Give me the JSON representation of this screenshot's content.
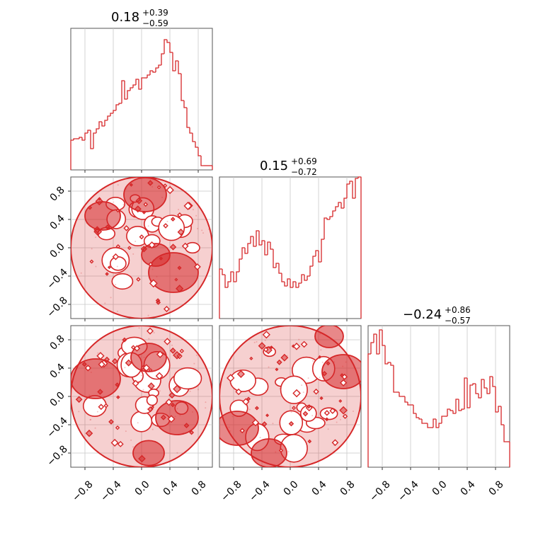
{
  "figure": {
    "panels": [
      {
        "title": {
          "value": "0.18",
          "upper": "+0.39",
          "lower": "−0.59"
        }
      },
      {
        "title": {
          "value": "0.15",
          "upper": "+0.69",
          "lower": "−0.72"
        }
      },
      {
        "title": {
          "value": "−0.24",
          "upper": "+0.86",
          "lower": "−0.57"
        }
      }
    ],
    "tick_labels": [
      "−0.8",
      "−0.4",
      "0.0",
      "0.4",
      "0.8"
    ]
  },
  "chart_data": [
    {
      "type": "histogram",
      "panel": "diag-0",
      "title": "0.18 +0.39 −0.59",
      "xlim": [
        -1,
        1
      ],
      "ylim": [
        0,
        1
      ],
      "color": "#d62728",
      "bin_edges": [
        -1.0,
        -0.96,
        -0.92,
        -0.88,
        -0.84,
        -0.8,
        -0.76,
        -0.72,
        -0.68,
        -0.64,
        -0.6,
        -0.56,
        -0.52,
        -0.48,
        -0.44,
        -0.4,
        -0.36,
        -0.32,
        -0.28,
        -0.24,
        -0.2,
        -0.16,
        -0.12,
        -0.08,
        -0.04,
        0.0,
        0.04,
        0.08,
        0.12,
        0.16,
        0.2,
        0.24,
        0.28,
        0.32,
        0.36,
        0.4,
        0.44,
        0.48,
        0.52,
        0.56,
        0.6,
        0.64,
        0.68,
        0.72,
        0.76,
        0.8,
        0.84,
        0.88,
        0.92,
        0.96,
        1.0
      ],
      "counts": [
        0.21,
        0.22,
        0.22,
        0.23,
        0.21,
        0.26,
        0.28,
        0.15,
        0.26,
        0.29,
        0.34,
        0.31,
        0.35,
        0.38,
        0.4,
        0.42,
        0.46,
        0.47,
        0.63,
        0.5,
        0.56,
        0.58,
        0.6,
        0.64,
        0.57,
        0.65,
        0.65,
        0.67,
        0.7,
        0.69,
        0.72,
        0.74,
        0.82,
        0.92,
        0.9,
        0.83,
        0.7,
        0.77,
        0.68,
        0.49,
        0.44,
        0.3,
        0.26,
        0.2,
        0.16,
        0.1,
        0.03,
        0.03,
        0.03,
        0.03
      ]
    },
    {
      "type": "histogram",
      "panel": "diag-1",
      "title": "0.15 +0.69 −0.72",
      "xlim": [
        -1,
        1
      ],
      "ylim": [
        0,
        1
      ],
      "color": "#d62728",
      "bin_edges": [
        -1.0,
        -0.96,
        -0.92,
        -0.88,
        -0.84,
        -0.8,
        -0.76,
        -0.72,
        -0.68,
        -0.64,
        -0.6,
        -0.56,
        -0.52,
        -0.48,
        -0.44,
        -0.4,
        -0.36,
        -0.32,
        -0.28,
        -0.24,
        -0.2,
        -0.16,
        -0.12,
        -0.08,
        -0.04,
        0.0,
        0.04,
        0.08,
        0.12,
        0.16,
        0.2,
        0.24,
        0.28,
        0.32,
        0.36,
        0.4,
        0.44,
        0.48,
        0.52,
        0.56,
        0.6,
        0.64,
        0.68,
        0.72,
        0.76,
        0.8,
        0.84,
        0.88,
        0.92,
        0.96,
        1.0
      ],
      "counts": [
        0.35,
        0.31,
        0.22,
        0.26,
        0.33,
        0.26,
        0.33,
        0.42,
        0.5,
        0.46,
        0.53,
        0.58,
        0.51,
        0.62,
        0.52,
        0.55,
        0.45,
        0.54,
        0.49,
        0.36,
        0.39,
        0.32,
        0.26,
        0.23,
        0.28,
        0.22,
        0.26,
        0.22,
        0.25,
        0.31,
        0.27,
        0.3,
        0.37,
        0.44,
        0.48,
        0.4,
        0.56,
        0.71,
        0.7,
        0.72,
        0.76,
        0.79,
        0.82,
        0.78,
        0.85,
        0.95,
        0.97,
        0.85,
        0.99,
        1.0
      ]
    },
    {
      "type": "histogram",
      "panel": "diag-2",
      "title": "−0.24 +0.86 −0.57",
      "xlim": [
        -1,
        1
      ],
      "ylim": [
        0,
        1
      ],
      "color": "#d62728",
      "bin_edges": [
        -1.0,
        -0.96,
        -0.92,
        -0.88,
        -0.84,
        -0.8,
        -0.76,
        -0.72,
        -0.68,
        -0.64,
        -0.6,
        -0.56,
        -0.52,
        -0.48,
        -0.44,
        -0.4,
        -0.36,
        -0.32,
        -0.28,
        -0.24,
        -0.2,
        -0.16,
        -0.12,
        -0.08,
        -0.04,
        0.0,
        0.04,
        0.08,
        0.12,
        0.16,
        0.2,
        0.24,
        0.28,
        0.32,
        0.36,
        0.4,
        0.44,
        0.48,
        0.52,
        0.56,
        0.6,
        0.64,
        0.68,
        0.72,
        0.76,
        0.8,
        0.84,
        0.88,
        0.92,
        0.96,
        1.0
      ],
      "counts": [
        0.8,
        0.88,
        0.94,
        0.8,
        0.97,
        0.86,
        0.73,
        0.74,
        0.72,
        0.53,
        0.53,
        0.5,
        0.5,
        0.46,
        0.44,
        0.44,
        0.38,
        0.35,
        0.34,
        0.31,
        0.31,
        0.28,
        0.28,
        0.34,
        0.28,
        0.31,
        0.36,
        0.36,
        0.41,
        0.4,
        0.38,
        0.48,
        0.4,
        0.41,
        0.63,
        0.42,
        0.58,
        0.59,
        0.52,
        0.49,
        0.62,
        0.56,
        0.52,
        0.64,
        0.57,
        0.39,
        0.43,
        0.3,
        0.18,
        0.18
      ]
    },
    {
      "type": "contour",
      "panel": "pair-1-0",
      "xlim": [
        -1,
        1
      ],
      "ylim": [
        -1,
        1
      ],
      "color": "#d62728",
      "support_circle": {
        "cx": 0,
        "cy": 0,
        "r": 1
      },
      "dense_regions": [
        {
          "cx": -0.55,
          "cy": 0.45,
          "r": 0.25
        },
        {
          "cx": 0.05,
          "cy": 0.75,
          "r": 0.3
        },
        {
          "cx": 0.45,
          "cy": -0.35,
          "r": 0.35
        },
        {
          "cx": 0.2,
          "cy": -0.1,
          "r": 0.2
        }
      ]
    },
    {
      "type": "contour",
      "panel": "pair-2-0",
      "xlim": [
        -1,
        1
      ],
      "ylim": [
        -1,
        1
      ],
      "color": "#d62728",
      "support_circle": {
        "cx": 0,
        "cy": 0,
        "r": 1
      },
      "dense_regions": [
        {
          "cx": -0.65,
          "cy": 0.25,
          "r": 0.35
        },
        {
          "cx": 0.1,
          "cy": 0.55,
          "r": 0.25
        },
        {
          "cx": 0.5,
          "cy": -0.3,
          "r": 0.3
        },
        {
          "cx": 0.1,
          "cy": -0.8,
          "r": 0.22
        }
      ]
    },
    {
      "type": "contour",
      "panel": "pair-2-1",
      "xlim": [
        -1,
        1
      ],
      "ylim": [
        -1,
        1
      ],
      "color": "#d62728",
      "support_circle": {
        "cx": 0,
        "cy": 0,
        "r": 1
      },
      "dense_regions": [
        {
          "cx": -0.75,
          "cy": -0.45,
          "r": 0.3
        },
        {
          "cx": -0.3,
          "cy": -0.8,
          "r": 0.25
        },
        {
          "cx": 0.75,
          "cy": 0.35,
          "r": 0.3
        },
        {
          "cx": 0.55,
          "cy": 0.85,
          "r": 0.2
        }
      ]
    }
  ]
}
